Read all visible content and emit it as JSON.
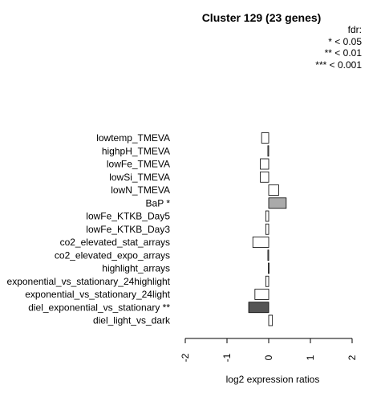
{
  "chart_data": {
    "type": "bar",
    "orientation": "horizontal",
    "title": "Cluster 129 (23 genes)",
    "xlabel": "log2 expression ratios",
    "ylabel": "",
    "xlim": [
      -2,
      2
    ],
    "xticks": [
      "-2",
      "-1",
      "0",
      "1",
      "2"
    ],
    "grid": false,
    "legend_placement": "top-right",
    "legend": {
      "title": "fdr:",
      "entries": [
        "* < 0.05",
        "** < 0.01",
        "*** < 0.001"
      ]
    },
    "categories": [
      "lowtemp_TMEVA",
      "highpH_TMEVA",
      "lowFe_TMEVA",
      "lowSi_TMEVA",
      "lowN_TMEVA",
      "BaP *",
      "lowFe_KTKB_Day5",
      "lowFe_KTKB_Day3",
      "co2_elevated_stat_arrays",
      "co2_elevated_expo_arrays",
      "highlight_arrays",
      "exponential_vs_stationary_24highlight",
      "exponential_vs_stationary_24light",
      "diel_exponential_vs_stationary **",
      "diel_light_vs_dark"
    ],
    "values": [
      -0.17,
      -0.02,
      -0.2,
      -0.2,
      0.24,
      0.42,
      -0.07,
      -0.07,
      -0.38,
      -0.02,
      -0.01,
      -0.07,
      -0.33,
      -0.48,
      0.09
    ],
    "bar_colors": [
      "#ffffff",
      "#ffffff",
      "#ffffff",
      "#ffffff",
      "#ffffff",
      "#aaaaaa",
      "#ffffff",
      "#ffffff",
      "#ffffff",
      "#ffffff",
      "#ffffff",
      "#ffffff",
      "#ffffff",
      "#555555",
      "#ffffff"
    ]
  }
}
